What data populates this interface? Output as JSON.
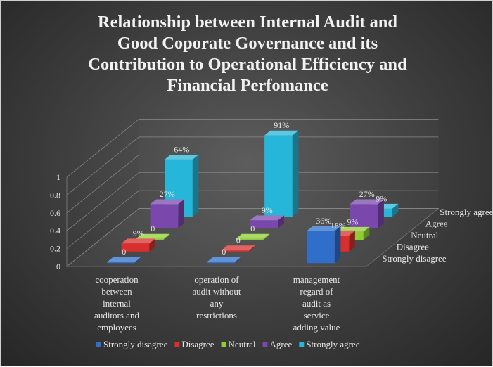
{
  "chart_data": {
    "type": "bar",
    "title_lines": [
      "Relationship between Internal Audit and",
      "Good Coporate Governance and its",
      "Contribution to Operational Efficiency and",
      "Financial Perfomance"
    ],
    "categories": [
      [
        "cooperation",
        "between",
        "internal",
        "auditors and",
        "employees"
      ],
      [
        "operation of",
        "audit without",
        "any",
        "restrictions"
      ],
      [
        "management",
        "regard of",
        "audit as",
        "service",
        "adding value"
      ]
    ],
    "series": [
      {
        "name": "Strongly disagree",
        "color": "#2f6fc9",
        "values": [
          0,
          0,
          0.36
        ],
        "labels": [
          "0",
          "0",
          "36%"
        ]
      },
      {
        "name": "Disagree",
        "color": "#d92e2e",
        "values": [
          0.09,
          0,
          0.18
        ],
        "labels": [
          "9%",
          "0",
          "18%"
        ]
      },
      {
        "name": "Neutral",
        "color": "#8fce32",
        "values": [
          0,
          0,
          0.09
        ],
        "labels": [
          "0",
          "0",
          "9%"
        ]
      },
      {
        "name": "Agree",
        "color": "#7a48ad",
        "values": [
          0.27,
          0.09,
          0.27
        ],
        "labels": [
          "27%",
          "9%",
          "27%"
        ]
      },
      {
        "name": "Strongly agree",
        "color": "#26b6d9",
        "values": [
          0.64,
          0.91,
          0.09
        ],
        "labels": [
          "64%",
          "91%",
          "9%"
        ]
      }
    ],
    "y_ticks": [
      "0",
      "0.2",
      "0.4",
      "0.6",
      "0.8",
      "1"
    ],
    "ylim": [
      0,
      1
    ],
    "legend_position": "bottom",
    "depth_axis_labels": [
      "Strongly disagree",
      "Disagree",
      "Neutral",
      "Agree",
      "Strongly agree"
    ],
    "grid": true,
    "projection": "3d"
  }
}
